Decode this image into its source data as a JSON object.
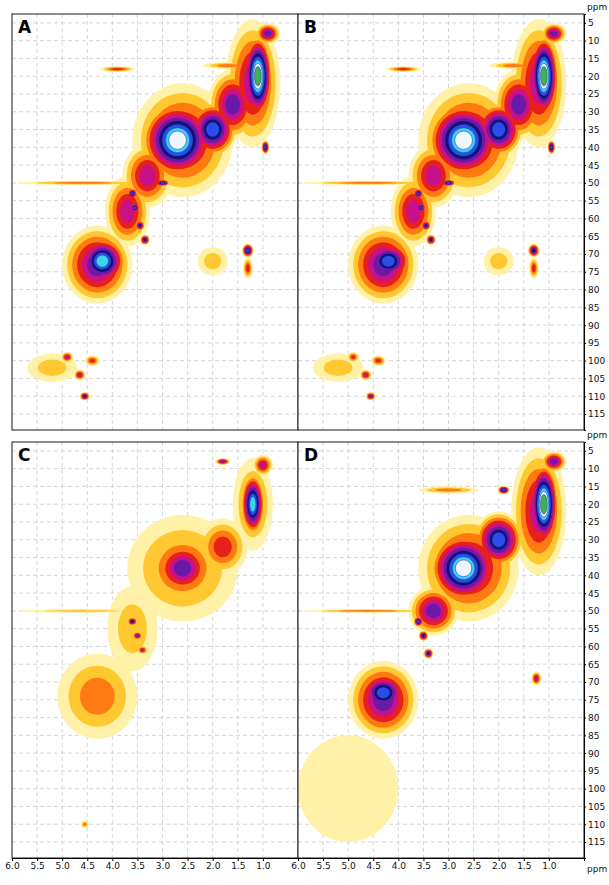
{
  "chart_data": [
    {
      "type": "contour",
      "title": "A",
      "grid": true,
      "tick_labels": false,
      "xlim": [
        6.0,
        0.3
      ],
      "ylim": [
        2.5,
        119.5
      ],
      "xticks": [
        {
          "value": 6,
          "label": "6.0"
        },
        5.5,
        {
          "value": 5,
          "label": "5.0"
        },
        4.5,
        {
          "value": 4,
          "label": "4.0"
        },
        3.5,
        {
          "value": 3,
          "label": "3.0"
        },
        2.5,
        {
          "value": 2,
          "label": "2.0"
        },
        1.5,
        {
          "value": 1,
          "label": "1.0"
        }
      ],
      "yticks": [
        5,
        10,
        15,
        20,
        25,
        30,
        35,
        40,
        45,
        50,
        55,
        60,
        65,
        70,
        75,
        80,
        85,
        90,
        95,
        100,
        105,
        110,
        115
      ],
      "contour_levels": [
        1,
        2,
        3,
        4,
        5,
        6,
        7,
        8,
        9,
        10,
        11
      ],
      "colors": [
        "#fff2a8",
        "#ffc830",
        "#ff7a10",
        "#e8201c",
        "#c8108a",
        "#6a1aa8",
        "#141478",
        "#2a4ce8",
        "#3cd4ec",
        "#eef6ff",
        "#3cb44b"
      ],
      "peaks": {
        "x": [
          1.2,
          1.1,
          1.6,
          2.6,
          2.7,
          2.0,
          3.3,
          3.7,
          4.3,
          4.2,
          3.6,
          3.55,
          3.45,
          3.35,
          3.0,
          4.6,
          3.9,
          1.3,
          1.3,
          2.0,
          4.9,
          4.65,
          4.55,
          4.4,
          5.2,
          0.95,
          1.7,
          0.9
        ],
        "y": [
          22,
          20,
          28,
          38,
          38,
          35,
          48,
          58,
          73,
          72,
          53,
          57,
          62,
          66,
          50,
          50,
          18,
          69,
          74,
          72,
          99,
          104,
          110,
          100,
          102,
          40,
          17,
          8
        ],
        "x_width": [
          0.55,
          0.3,
          0.5,
          1.0,
          0.75,
          0.5,
          0.5,
          0.45,
          0.7,
          0.5,
          0.1,
          0.1,
          0.1,
          0.1,
          0.15,
          1.3,
          0.35,
          0.12,
          0.1,
          0.3,
          0.12,
          0.12,
          0.1,
          0.15,
          0.5,
          0.08,
          0.5,
          0.25
        ],
        "y_width": [
          18,
          12,
          10,
          16,
          11,
          8,
          9,
          10,
          11,
          7,
          1.5,
          1.5,
          1.5,
          1.5,
          1,
          0.6,
          0.8,
          2,
          3,
          4,
          1.5,
          1.5,
          1.2,
          1.5,
          4,
          2,
          1,
          3
        ],
        "level": [
          5,
          11,
          6,
          5,
          10,
          8,
          5,
          5,
          6,
          9,
          8,
          8,
          7,
          7,
          8,
          3,
          4,
          8,
          4,
          2,
          5,
          5,
          7,
          4,
          2,
          8,
          3,
          6
        ]
      }
    },
    {
      "type": "contour",
      "title": "B",
      "grid": true,
      "tick_labels": "y",
      "y_label": "ppm",
      "xlim": [
        6.0,
        0.3
      ],
      "ylim": [
        2.5,
        119.5
      ],
      "xticks": [
        {
          "value": 6,
          "label": "6.0"
        },
        5.5,
        {
          "value": 5,
          "label": "5.0"
        },
        4.5,
        {
          "value": 4,
          "label": "4.0"
        },
        3.5,
        {
          "value": 3,
          "label": "3.0"
        },
        2.5,
        {
          "value": 2,
          "label": "2.0"
        },
        1.5,
        {
          "value": 1,
          "label": "1.0"
        }
      ],
      "yticks": [
        5,
        10,
        15,
        20,
        25,
        30,
        35,
        40,
        45,
        50,
        55,
        60,
        65,
        70,
        75,
        80,
        85,
        90,
        95,
        100,
        105,
        110,
        115
      ],
      "contour_levels": [
        1,
        2,
        3,
        4,
        5,
        6,
        7,
        8,
        9,
        10,
        11
      ],
      "colors": [
        "#fff2a8",
        "#ffc830",
        "#ff7a10",
        "#e8201c",
        "#c8108a",
        "#6a1aa8",
        "#141478",
        "#2a4ce8",
        "#3cd4ec",
        "#eef6ff",
        "#3cb44b"
      ],
      "peaks": {
        "x": [
          1.2,
          1.1,
          1.6,
          2.6,
          2.7,
          2.0,
          3.3,
          3.7,
          4.3,
          4.2,
          3.6,
          3.55,
          3.45,
          3.35,
          3.0,
          4.6,
          3.9,
          1.3,
          1.3,
          2.0,
          4.9,
          4.65,
          4.55,
          4.4,
          5.2,
          0.95,
          1.7,
          0.9
        ],
        "y": [
          22,
          20,
          28,
          38,
          38,
          35,
          48,
          58,
          73,
          72,
          53,
          57,
          62,
          66,
          50,
          50,
          18,
          69,
          74,
          72,
          99,
          104,
          110,
          100,
          102,
          40,
          17,
          8
        ],
        "x_width": [
          0.55,
          0.3,
          0.5,
          1.0,
          0.75,
          0.5,
          0.5,
          0.45,
          0.7,
          0.5,
          0.1,
          0.1,
          0.1,
          0.1,
          0.15,
          1.3,
          0.35,
          0.12,
          0.1,
          0.3,
          0.12,
          0.12,
          0.1,
          0.15,
          0.5,
          0.08,
          0.5,
          0.25
        ],
        "y_width": [
          18,
          12,
          10,
          16,
          11,
          8,
          9,
          10,
          11,
          6,
          1.5,
          1.5,
          1.5,
          1.5,
          1,
          0.6,
          0.8,
          2,
          3,
          4,
          1.5,
          1.5,
          1.2,
          1.5,
          4,
          2,
          1,
          3
        ],
        "level": [
          5,
          11,
          6,
          5,
          10,
          8,
          5,
          5,
          6,
          8,
          8,
          8,
          7,
          7,
          8,
          3,
          4,
          7,
          4,
          2,
          4,
          5,
          6,
          4,
          2,
          8,
          3,
          6
        ]
      }
    },
    {
      "type": "contour",
      "title": "C",
      "grid": true,
      "tick_labels": "x",
      "xlim": [
        6.0,
        0.3
      ],
      "ylim": [
        2.5,
        119.5
      ],
      "xticks": [
        {
          "value": 6,
          "label": "6.0"
        },
        5.5,
        {
          "value": 5,
          "label": "5.0"
        },
        4.5,
        {
          "value": 4,
          "label": "4.0"
        },
        3.5,
        {
          "value": 3,
          "label": "3.0"
        },
        2.5,
        {
          "value": 2,
          "label": "2.0"
        },
        1.5,
        {
          "value": 1,
          "label": "1.0"
        }
      ],
      "yticks": [
        5,
        10,
        15,
        20,
        25,
        30,
        35,
        40,
        45,
        50,
        55,
        60,
        65,
        70,
        75,
        80,
        85,
        90,
        95,
        100,
        105,
        110,
        115
      ],
      "contour_levels": [
        1,
        2,
        3,
        4,
        5,
        6,
        7,
        8,
        9,
        10,
        11
      ],
      "colors": [
        "#fff2a8",
        "#ffc830",
        "#ff7a10",
        "#e8201c",
        "#c8108a",
        "#6a1aa8",
        "#141478",
        "#2a4ce8",
        "#3cd4ec",
        "#eef6ff",
        "#3cb44b"
      ],
      "peaks": {
        "x": [
          2.6,
          2.6,
          1.2,
          1.2,
          4.3,
          1.8,
          3.6,
          3.6,
          3.5,
          3.4,
          4.6,
          1.0,
          1.8,
          4.55
        ],
        "y": [
          38,
          38,
          20,
          20,
          74,
          32,
          55,
          53,
          57,
          61,
          50,
          9,
          8,
          110
        ],
        "x_width": [
          1.1,
          0.6,
          0.4,
          0.25,
          0.8,
          0.5,
          0.5,
          0.1,
          0.1,
          0.1,
          1.3,
          0.2,
          0.15,
          0.08
        ],
        "y_width": [
          15,
          8,
          13,
          9,
          12,
          8,
          12,
          1.2,
          1.2,
          1.2,
          0.5,
          3,
          1,
          1
        ],
        "level": [
          3,
          6,
          3,
          9,
          3,
          4,
          2,
          7,
          6,
          5,
          2,
          5,
          6,
          3
        ]
      }
    },
    {
      "type": "contour",
      "title": "D",
      "grid": true,
      "x_label": "ppm",
      "y_label": "ppm",
      "xlim": [
        6.0,
        0.3
      ],
      "ylim": [
        2.5,
        119.5
      ],
      "xticks": [
        {
          "value": 6,
          "label": "6.0"
        },
        5.5,
        {
          "value": 5,
          "label": "5.0"
        },
        4.5,
        {
          "value": 4,
          "label": "4.0"
        },
        3.5,
        {
          "value": 3,
          "label": "3.0"
        },
        2.5,
        {
          "value": 2,
          "label": "2.0"
        },
        1.5,
        {
          "value": 1,
          "label": "1.0"
        }
      ],
      "yticks": [
        5,
        10,
        15,
        20,
        25,
        30,
        35,
        40,
        45,
        50,
        55,
        60,
        65,
        70,
        75,
        80,
        85,
        90,
        95,
        100,
        105,
        110,
        115
      ],
      "contour_levels": [
        1,
        2,
        3,
        4,
        5,
        6,
        7,
        8,
        9,
        10,
        11
      ],
      "colors": [
        "#fff2a8",
        "#ffc830",
        "#ff7a10",
        "#e8201c",
        "#c8108a",
        "#6a1aa8",
        "#141478",
        "#2a4ce8",
        "#3cd4ec",
        "#eef6ff",
        "#3cb44b"
      ],
      "peaks": {
        "x": [
          1.2,
          1.1,
          2.6,
          2.7,
          2.0,
          3.3,
          4.3,
          4.3,
          3.6,
          3.5,
          3.4,
          4.6,
          1.9,
          3.0,
          1.25,
          5.0,
          0.9
        ],
        "y": [
          22,
          20,
          38,
          38,
          30,
          50,
          75,
          73,
          53,
          57,
          62,
          50,
          16,
          16,
          69,
          100,
          8
        ],
        "x_width": [
          0.55,
          0.3,
          1.0,
          0.7,
          0.5,
          0.5,
          0.7,
          0.5,
          0.1,
          0.1,
          0.1,
          1.3,
          0.12,
          0.6,
          0.1,
          1.0,
          0.25
        ],
        "y_width": [
          18,
          12,
          15,
          10,
          8,
          7,
          11,
          6,
          1.5,
          1.5,
          1.5,
          0.5,
          1.2,
          1,
          2,
          15,
          3
        ],
        "level": [
          5,
          11,
          5,
          10,
          8,
          6,
          6,
          8,
          8,
          7,
          7,
          3,
          8,
          3,
          5,
          1,
          6
        ]
      }
    }
  ]
}
